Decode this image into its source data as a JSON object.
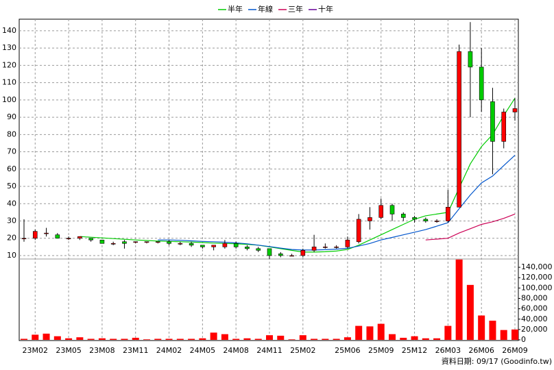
{
  "chart_data": {
    "type": "candlestick",
    "legend": [
      {
        "name": "半年",
        "color": "#00cc00"
      },
      {
        "name": "年線",
        "color": "#0055cc"
      },
      {
        "name": "三年",
        "color": "#cc0055"
      },
      {
        "name": "十年",
        "color": "#660099"
      }
    ],
    "categories": [
      null,
      "23M02",
      null,
      null,
      "23M05",
      null,
      null,
      "23M08",
      null,
      null,
      "23M11",
      null,
      null,
      "24M02",
      null,
      null,
      "24M05",
      null,
      null,
      "24M08",
      null,
      null,
      "24M11",
      null,
      null,
      "25M02",
      null,
      null,
      null,
      "25M06",
      null,
      null,
      "25M09",
      null,
      null,
      "25M12",
      null,
      null,
      "26M03",
      null,
      null,
      "26M06",
      null,
      null,
      "26M09"
    ],
    "open": [
      20,
      20,
      23,
      22,
      20,
      20,
      20,
      19,
      17,
      18,
      18,
      18,
      18,
      18,
      17,
      17,
      16,
      15,
      15,
      17,
      15,
      14,
      14,
      11,
      10,
      10,
      13,
      15,
      15,
      15,
      18,
      30,
      32,
      39,
      34,
      32,
      31,
      30,
      30,
      38,
      128,
      119,
      99,
      76,
      93
    ],
    "high": [
      31,
      25,
      26,
      23,
      21,
      21,
      20,
      19,
      18,
      19,
      18,
      18,
      18,
      19,
      18,
      18,
      16,
      16,
      19,
      18,
      16,
      15,
      14,
      12,
      11,
      14,
      22,
      17,
      16,
      21,
      34,
      38,
      43,
      40,
      35,
      33,
      32,
      31,
      48,
      132,
      145,
      130,
      107,
      95,
      101
    ],
    "low": [
      18,
      19,
      21,
      20,
      19,
      19,
      18,
      17,
      16,
      14,
      17,
      17,
      17,
      16,
      16,
      15,
      14,
      13,
      14,
      14,
      13,
      12,
      8,
      9,
      10,
      9,
      12,
      14,
      14,
      14,
      17,
      25,
      31,
      30,
      30,
      29,
      29,
      29,
      29,
      38,
      90,
      93,
      57,
      72,
      88
    ],
    "close": [
      20,
      24,
      23,
      20,
      20,
      21,
      19,
      17,
      17,
      17,
      18,
      18,
      18,
      17,
      17,
      16,
      15,
      16,
      17,
      15,
      14,
      13,
      10,
      10,
      10,
      13,
      15,
      15,
      15,
      19,
      31,
      32,
      39,
      34,
      32,
      31,
      30,
      30,
      38,
      128,
      119,
      100,
      76,
      93,
      95
    ],
    "volume": [
      2000,
      10000,
      12000,
      7000,
      3000,
      5000,
      2000,
      3000,
      2000,
      2000,
      4000,
      1000,
      2000,
      2000,
      2000,
      2000,
      3000,
      14000,
      11000,
      2000,
      3000,
      2000,
      9000,
      8000,
      1000,
      9000,
      2000,
      2000,
      2000,
      5000,
      27000,
      26000,
      31000,
      11000,
      4000,
      7000,
      3000,
      3000,
      27000,
      155000,
      106000,
      47000,
      37000,
      19000,
      20000
    ],
    "series": [
      {
        "name": "半年",
        "color": "#00cc00",
        "values": [
          null,
          null,
          null,
          null,
          null,
          21,
          20.6,
          20.2,
          19.8,
          19.4,
          19,
          18.7,
          18.4,
          18.2,
          18,
          17.8,
          17.5,
          17.2,
          17,
          16.8,
          16.5,
          16,
          15,
          14,
          13,
          12,
          12,
          12.2,
          12.6,
          13.5,
          16,
          19,
          22,
          25,
          28,
          31,
          33,
          34,
          35,
          49,
          63,
          73,
          80,
          91,
          101
        ]
      },
      {
        "name": "年線",
        "color": "#0055cc",
        "values": [
          null,
          null,
          null,
          null,
          null,
          null,
          null,
          null,
          null,
          null,
          null,
          null,
          19,
          19,
          18.8,
          18.5,
          18.2,
          18,
          17.7,
          17.3,
          16.8,
          16,
          15.2,
          14.3,
          13.5,
          13.2,
          13.2,
          13.4,
          13.7,
          14.2,
          15.5,
          17,
          19,
          20.5,
          22,
          23.5,
          25,
          27,
          29,
          37,
          45,
          52,
          56,
          62,
          68
        ]
      },
      {
        "name": "三年",
        "color": "#cc0055",
        "values": [
          null,
          null,
          null,
          null,
          null,
          null,
          null,
          null,
          null,
          null,
          null,
          null,
          null,
          null,
          null,
          null,
          null,
          null,
          null,
          null,
          null,
          null,
          null,
          null,
          null,
          null,
          null,
          null,
          null,
          null,
          null,
          null,
          null,
          null,
          null,
          null,
          19,
          19.5,
          20,
          23,
          25.5,
          28,
          29.5,
          31.5,
          34
        ]
      },
      {
        "name": "十年",
        "color": "#660099",
        "values": [
          null,
          null,
          null,
          null,
          null,
          null,
          null,
          null,
          null,
          null,
          null,
          null,
          null,
          null,
          null,
          null,
          null,
          null,
          null,
          null,
          null,
          null,
          null,
          null,
          null,
          null,
          null,
          null,
          null,
          null,
          null,
          null,
          null,
          null,
          null,
          null,
          null,
          null,
          null,
          null,
          null,
          null,
          null,
          null,
          null
        ]
      }
    ],
    "up_color": "#ff0000",
    "down_color": "#00cc00",
    "volume_color": "#ff0000",
    "ylim": [
      8,
      146.7
    ],
    "yticks": [
      10,
      20,
      30,
      40,
      50,
      60,
      70,
      80,
      90,
      100,
      110,
      120,
      130,
      140
    ],
    "y2lim": [
      -1300,
      156000
    ],
    "y2ticks": [
      {
        "value": 0,
        "label": "0"
      },
      {
        "value": 20000,
        "label": "20,000"
      },
      {
        "value": 40000,
        "label": "40,000"
      },
      {
        "value": 60000,
        "label": "60,000"
      },
      {
        "value": 80000,
        "label": "80,000"
      },
      {
        "value": 100000,
        "label": "100,000"
      },
      {
        "value": 120000,
        "label": "120,000"
      },
      {
        "value": 140000,
        "label": "140,000"
      }
    ],
    "grid": true,
    "footnote": "資料日期: 09/17  (Goodinfo.tw)"
  }
}
